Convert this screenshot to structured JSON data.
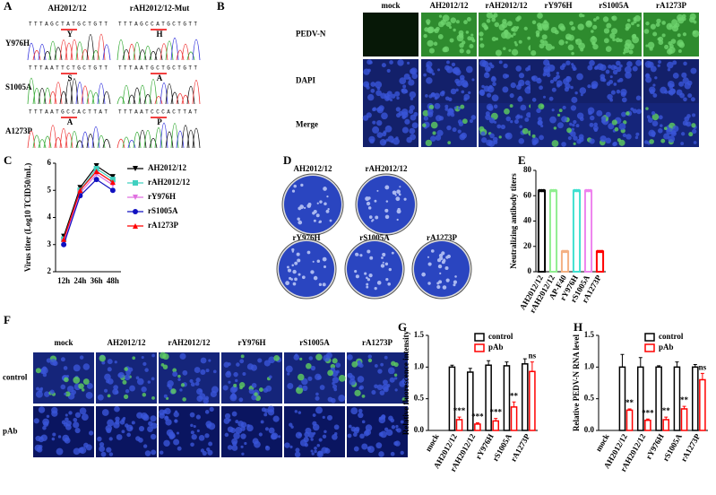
{
  "panel_labels": [
    "A",
    "B",
    "C",
    "D",
    "E",
    "F",
    "G",
    "H"
  ],
  "panel_a": {
    "headers": [
      "AH2012/12",
      "rAH2012/12-Mut"
    ],
    "rows": [
      {
        "label": "Y976H",
        "seq_wt": "TTTAGCTATGCTGTT",
        "aa_wt": "Y",
        "seq_mut": "TTTAGCCATGCTGTT",
        "aa_mut": "H"
      },
      {
        "label": "S1005A",
        "seq_wt": "TTTAATTCTGCTGTT",
        "aa_wt": "S",
        "seq_mut": "TTTAATGCTGCTGTT",
        "aa_mut": "A"
      },
      {
        "label": "A1273P",
        "seq_wt": "TTTAATGCCACTTAT",
        "aa_wt": "A",
        "seq_mut": "TTTAATCCCACTTAT",
        "aa_mut": "P"
      }
    ]
  },
  "panel_b": {
    "columns": [
      "mock",
      "AH2012/12",
      "rAH2012/12",
      "rY976H",
      "rS1005A",
      "rA1273P"
    ],
    "rows": [
      "PEDV-N",
      "DAPI",
      "Merge"
    ]
  },
  "panel_d": {
    "plates": [
      "AH2012/12",
      "rAH2012/12",
      "rY976H",
      "rS1005A",
      "rA1273P"
    ]
  },
  "panel_f": {
    "columns": [
      "mock",
      "AH2012/12",
      "rAH2012/12",
      "rY976H",
      "rS1005A",
      "rA1273P"
    ],
    "rows": [
      "control",
      "pAb"
    ]
  },
  "chart_data": [
    {
      "type": "line",
      "ylabel": "Virus titer (Log10 TCID50/mL)",
      "categories": [
        "12h",
        "24h",
        "36h",
        "48h"
      ],
      "series": [
        {
          "name": "AH2012/12",
          "color": "#000000",
          "marker": "triangle-down",
          "values": [
            3.3,
            5.1,
            5.9,
            5.5
          ]
        },
        {
          "name": "rAH2012/12",
          "color": "#40d0c0",
          "marker": "square",
          "values": [
            3.2,
            5.0,
            5.8,
            5.4
          ]
        },
        {
          "name": "rY976H",
          "color": "#e070e0",
          "marker": "triangle-down",
          "values": [
            3.1,
            4.9,
            5.6,
            5.2
          ]
        },
        {
          "name": "rS1005A",
          "color": "#1010c0",
          "marker": "circle",
          "values": [
            3.0,
            4.8,
            5.4,
            5.0
          ]
        },
        {
          "name": "rA1273P",
          "color": "#ff0000",
          "marker": "triangle",
          "values": [
            3.2,
            5.0,
            5.7,
            5.3
          ]
        }
      ],
      "ylim": [
        2,
        6
      ],
      "yticks": [
        2,
        3,
        4,
        5,
        6
      ]
    },
    {
      "type": "bar",
      "ylabel": "Neutralizing antibody titers",
      "categories": [
        "AH2012/12",
        "rAH2012/12",
        "AP-F40",
        "rY976H",
        "rS1005A",
        "rA1273P"
      ],
      "values": [
        64,
        64,
        16,
        64,
        64,
        16
      ],
      "colors": [
        "#000000",
        "#90ee90",
        "#f4b183",
        "#40e0d0",
        "#ee82ee",
        "#ff0000"
      ],
      "ylim": [
        0,
        80
      ],
      "yticks": [
        0,
        20,
        40,
        60,
        80
      ]
    },
    {
      "type": "grouped_bar",
      "ylabel": "Relative fluorescence intensity",
      "categories": [
        "mock",
        "AH2012/12",
        "rAH2012/12",
        "rY976H",
        "rS1005A",
        "rA1273P"
      ],
      "series": [
        {
          "name": "control",
          "color": "#000000",
          "values": [
            null,
            1.0,
            0.92,
            1.03,
            1.02,
            1.05
          ],
          "errors": [
            null,
            0.03,
            0.06,
            0.07,
            0.06,
            0.08
          ]
        },
        {
          "name": "pAb",
          "color": "#ff0000",
          "values": [
            null,
            0.17,
            0.1,
            0.15,
            0.37,
            0.93
          ],
          "errors": [
            null,
            0.04,
            0.02,
            0.04,
            0.08,
            0.15
          ]
        }
      ],
      "annotations": [
        null,
        "***",
        "***",
        "***",
        "**",
        "ns"
      ],
      "ylim": [
        0,
        1.5
      ],
      "yticks": [
        {
          "value": 0,
          "label": "0.0"
        },
        {
          "value": 0.5,
          "label": "0.5"
        },
        {
          "value": 1,
          "label": "1.0"
        },
        {
          "value": 1.5,
          "label": "1.5"
        }
      ]
    },
    {
      "type": "grouped_bar",
      "ylabel": "Relative PEDV-N RNA level",
      "categories": [
        "mock",
        "AH2012/12",
        "rAH2012/12",
        "rY976H",
        "rS1005A",
        "rA1273P"
      ],
      "series": [
        {
          "name": "control",
          "color": "#000000",
          "values": [
            null,
            1.0,
            1.0,
            1.0,
            1.0,
            1.0
          ],
          "errors": [
            null,
            0.2,
            0.15,
            0.02,
            0.08,
            0.04
          ]
        },
        {
          "name": "pAb",
          "color": "#ff0000",
          "values": [
            null,
            0.32,
            0.16,
            0.17,
            0.34,
            0.8
          ],
          "errors": [
            null,
            0.02,
            0.02,
            0.04,
            0.04,
            0.1
          ]
        }
      ],
      "annotations": [
        null,
        "**",
        "***",
        "**",
        "**",
        "ns"
      ],
      "ylim": [
        0,
        1.5
      ],
      "yticks": [
        {
          "value": 0,
          "label": "0.0"
        },
        {
          "value": 0.5,
          "label": "0.5"
        },
        {
          "value": 1,
          "label": "1.0"
        },
        {
          "value": 1.5,
          "label": "1.5"
        }
      ]
    }
  ]
}
